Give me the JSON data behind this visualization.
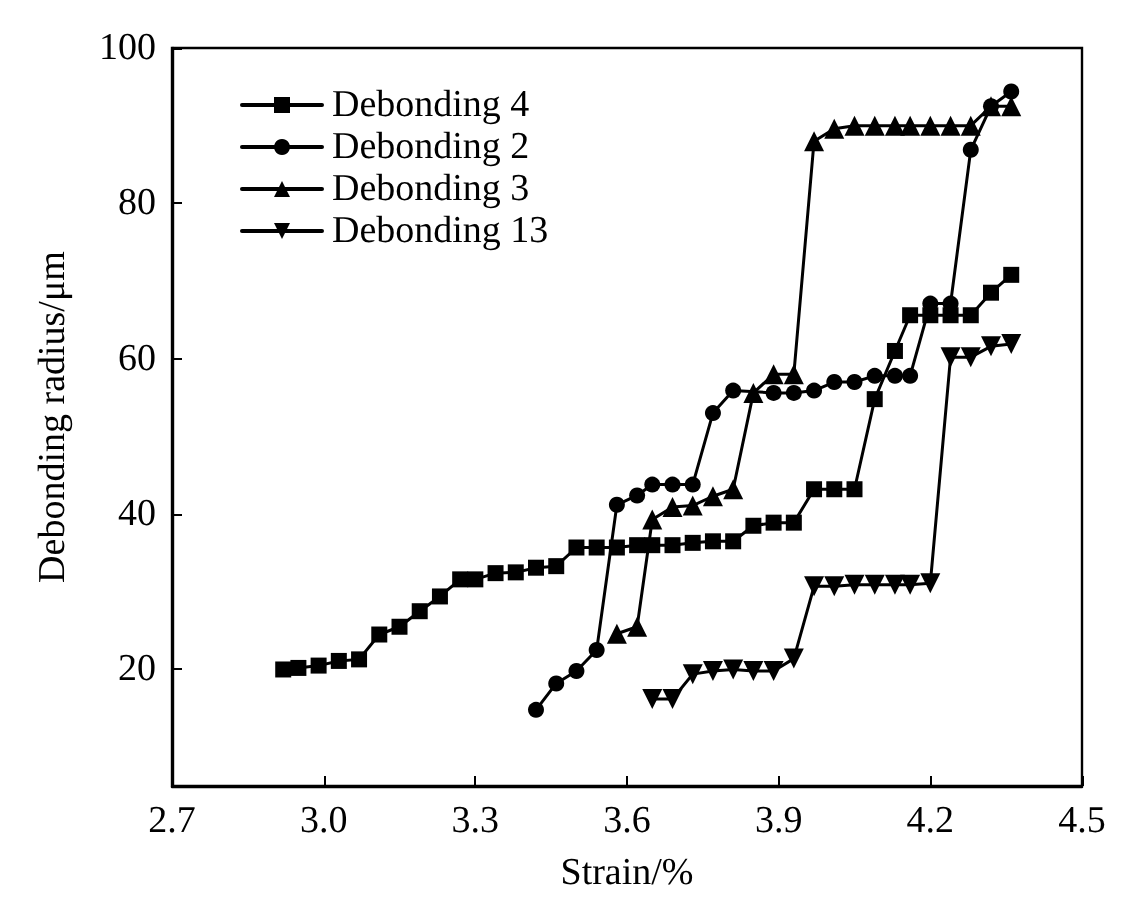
{
  "chart_data": {
    "type": "line",
    "xlabel": "Strain/%",
    "ylabel": "Debonding radius/μm",
    "xlim": [
      2.7,
      4.5
    ],
    "xticks": [
      2.7,
      {
        "value": 3,
        "label": "3.0"
      },
      3.3,
      3.6,
      3.9,
      4.2,
      4.5
    ],
    "ylim": [
      5,
      100
    ],
    "yticks": [
      20,
      40,
      60,
      80,
      100
    ],
    "grid": false,
    "legend": "top left",
    "line_style": "solid",
    "series": [
      {
        "name": "Debonding 4",
        "color": "#000000",
        "marker": "square",
        "x": [
          2.92,
          2.95,
          2.99,
          3.03,
          3.07,
          3.11,
          3.15,
          3.19,
          3.23,
          3.27,
          3.3,
          3.34,
          3.38,
          3.42,
          3.46,
          3.5,
          3.54,
          3.58,
          3.62,
          3.65,
          3.69,
          3.73,
          3.77,
          3.81,
          3.85,
          3.89,
          3.93,
          3.97,
          4.01,
          4.05,
          4.09,
          4.13,
          4.16,
          4.2,
          4.24,
          4.28,
          4.32,
          4.36
        ],
        "values": [
          20,
          20.2,
          20.5,
          21.1,
          21.3,
          24.5,
          25.5,
          27.5,
          29.4,
          31.6,
          31.6,
          32.4,
          32.5,
          33.1,
          33.3,
          35.7,
          35.7,
          35.7,
          36,
          36,
          36,
          36.3,
          36.5,
          36.5,
          38.5,
          38.9,
          38.9,
          43.2,
          43.2,
          43.2,
          54.8,
          61,
          65.6,
          65.6,
          65.6,
          65.6,
          68.5,
          70.8
        ]
      },
      {
        "name": "Debonding 2",
        "color": "#000000",
        "marker": "circle",
        "x": [
          3.42,
          3.46,
          3.5,
          3.54,
          3.58,
          3.62,
          3.65,
          3.69,
          3.73,
          3.77,
          3.81,
          3.89,
          3.93,
          3.97,
          4.01,
          4.05,
          4.09,
          4.13,
          4.16,
          4.2,
          4.24,
          4.28,
          4.32,
          4.36
        ],
        "values": [
          14.8,
          18.2,
          19.8,
          22.5,
          41.2,
          42.4,
          43.8,
          43.8,
          43.8,
          53,
          55.9,
          55.6,
          55.6,
          55.9,
          57,
          57,
          57.8,
          57.8,
          57.8,
          67.1,
          67.1,
          86.9,
          92.5,
          94.4
        ]
      },
      {
        "name": "Debonding 3",
        "color": "#000000",
        "marker": "triangle",
        "x": [
          3.58,
          3.62,
          3.65,
          3.69,
          3.73,
          3.77,
          3.81,
          3.85,
          3.89,
          3.93,
          3.97,
          4.01,
          4.05,
          4.09,
          4.13,
          4.16,
          4.2,
          4.24,
          4.28,
          4.32,
          4.36
        ],
        "values": [
          24.6,
          25.5,
          39.3,
          40.9,
          41.1,
          42.3,
          43.2,
          55.6,
          58,
          58,
          88,
          89.6,
          90,
          90,
          90,
          90,
          90,
          90,
          90,
          92.5,
          92.5
        ]
      },
      {
        "name": "Debonding 13",
        "color": "#000000",
        "marker": "triangle-down",
        "x": [
          3.65,
          3.69,
          3.73,
          3.77,
          3.81,
          3.85,
          3.89,
          3.93,
          3.97,
          4.01,
          4.05,
          4.09,
          4.13,
          4.16,
          4.2,
          4.24,
          4.28,
          4.32,
          4.36
        ],
        "values": [
          16.2,
          16.2,
          19.4,
          19.8,
          20,
          19.8,
          19.8,
          21.4,
          30.7,
          30.7,
          30.9,
          30.9,
          30.9,
          30.9,
          31.1,
          60.2,
          60.2,
          61.6,
          61.9
        ]
      }
    ]
  }
}
